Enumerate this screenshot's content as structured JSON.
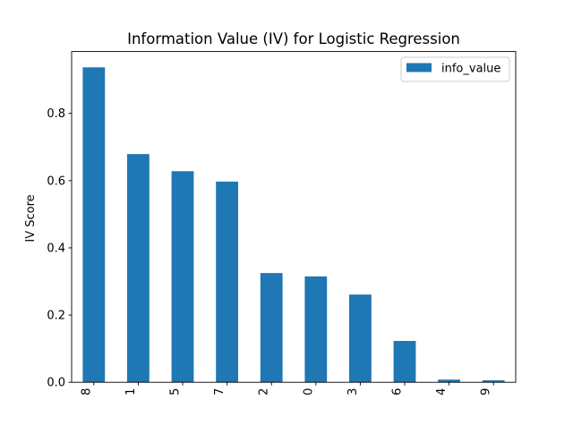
{
  "chart_data": {
    "type": "bar",
    "title": "Information Value (IV) for Logistic Regression",
    "xlabel": "",
    "ylabel": "IV Score",
    "categories": [
      "8",
      "1",
      "5",
      "7",
      "2",
      "0",
      "3",
      "6",
      "4",
      "9"
    ],
    "series": [
      {
        "name": "info_value",
        "values": [
          0.937,
          0.679,
          0.628,
          0.597,
          0.325,
          0.315,
          0.261,
          0.123,
          0.008,
          0.006
        ]
      }
    ],
    "ylim": [
      0,
      0.984
    ],
    "yticks": [
      0.0,
      0.2,
      0.4,
      0.6,
      0.8
    ],
    "ytick_labels": [
      "0.0",
      "0.2",
      "0.4",
      "0.6",
      "0.8"
    ],
    "grid": false,
    "legend": "top-right",
    "colors": {
      "bar": "#1f77b4"
    }
  }
}
